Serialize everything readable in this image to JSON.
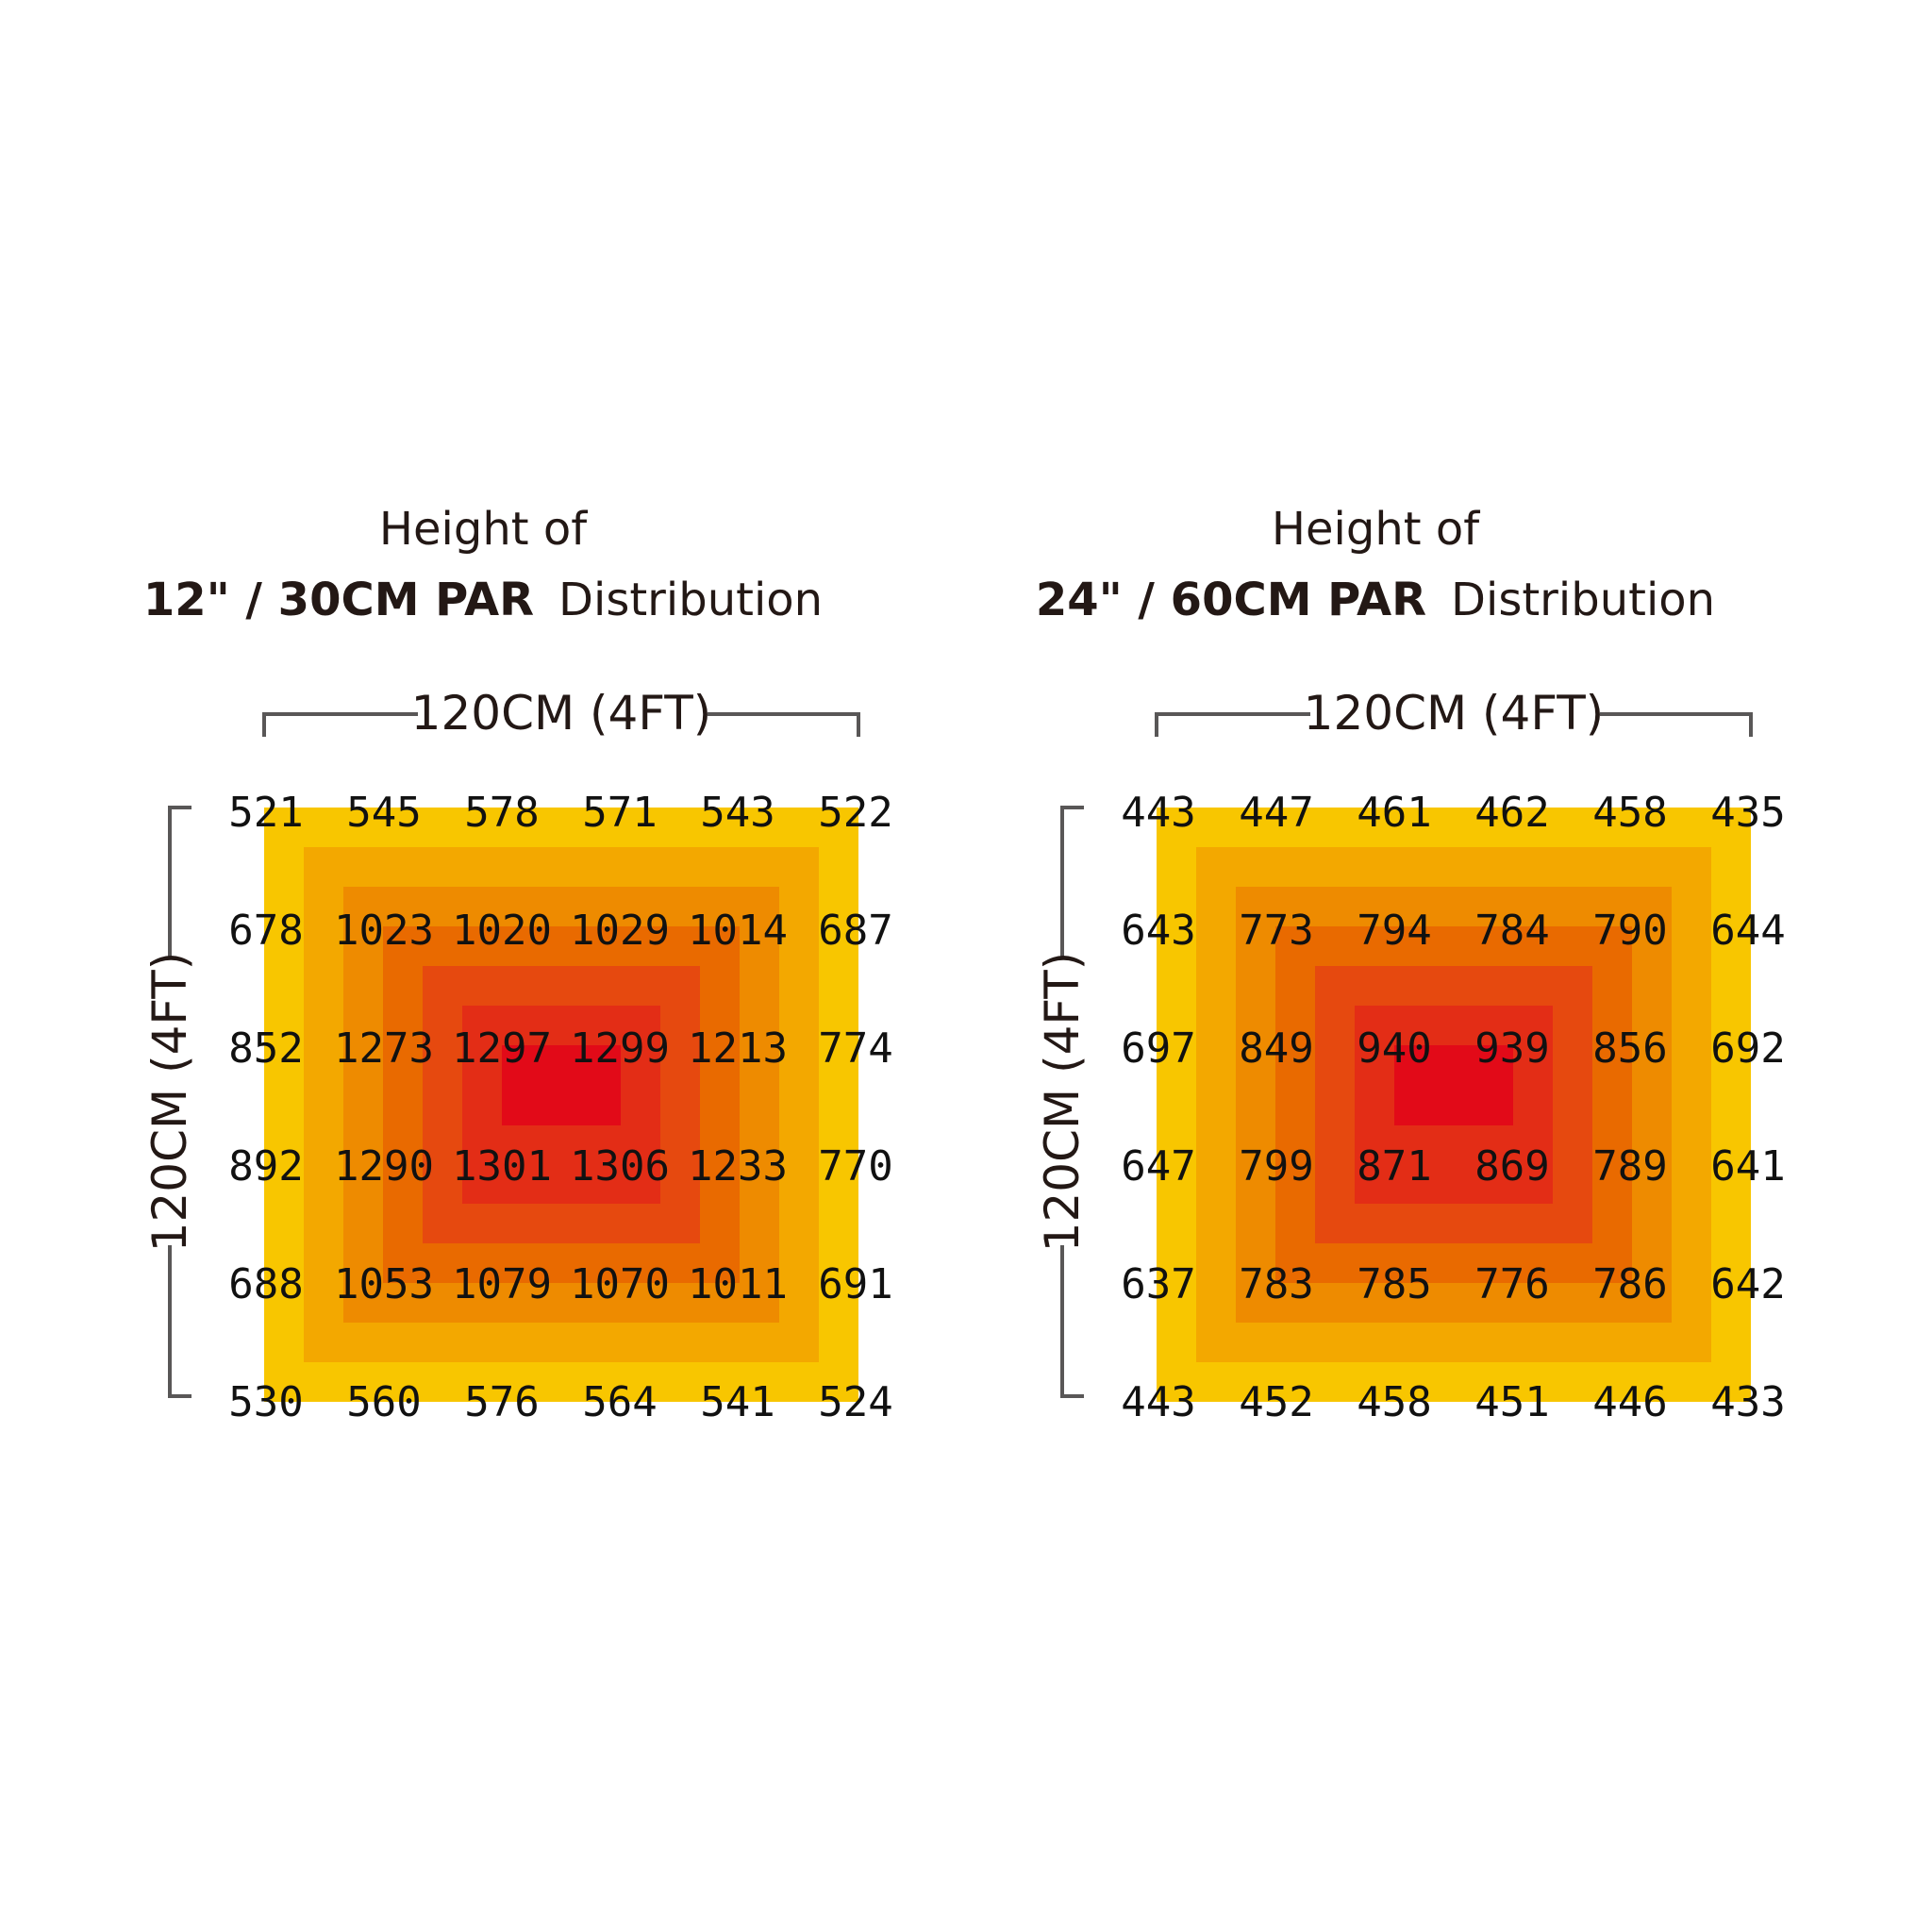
{
  "chart_data": [
    {
      "type": "heatmap",
      "title_line1": "Height of",
      "title_bold": "12\" / 30CM PAR",
      "title_rest": "Distribution",
      "xlabel": "120CM (4FT)",
      "ylabel": "120CM (4FT)",
      "values": [
        [
          521,
          545,
          578,
          571,
          543,
          522
        ],
        [
          678,
          1023,
          1020,
          1029,
          1014,
          687
        ],
        [
          852,
          1273,
          1297,
          1299,
          1213,
          774
        ],
        [
          892,
          1290,
          1301,
          1306,
          1233,
          770
        ],
        [
          688,
          1053,
          1079,
          1070,
          1011,
          691
        ],
        [
          530,
          560,
          576,
          564,
          541,
          524
        ]
      ]
    },
    {
      "type": "heatmap",
      "title_line1": "Height of",
      "title_bold": "24\" / 60CM PAR",
      "title_rest": "Distribution",
      "xlabel": "120CM (4FT)",
      "ylabel": "120CM (4FT)",
      "values": [
        [
          443,
          447,
          461,
          462,
          458,
          435
        ],
        [
          643,
          773,
          794,
          784,
          790,
          644
        ],
        [
          697,
          849,
          940,
          939,
          856,
          692
        ],
        [
          647,
          799,
          871,
          869,
          789,
          641
        ],
        [
          637,
          783,
          785,
          776,
          786,
          642
        ],
        [
          443,
          452,
          458,
          451,
          446,
          433
        ]
      ]
    }
  ],
  "colors": {
    "bands": [
      "#F8C600",
      "#F3A800",
      "#EE8B00",
      "#E96A00",
      "#E6490F",
      "#E32D16",
      "#E20A18"
    ],
    "bracket": "#595757",
    "text": "#231815"
  }
}
